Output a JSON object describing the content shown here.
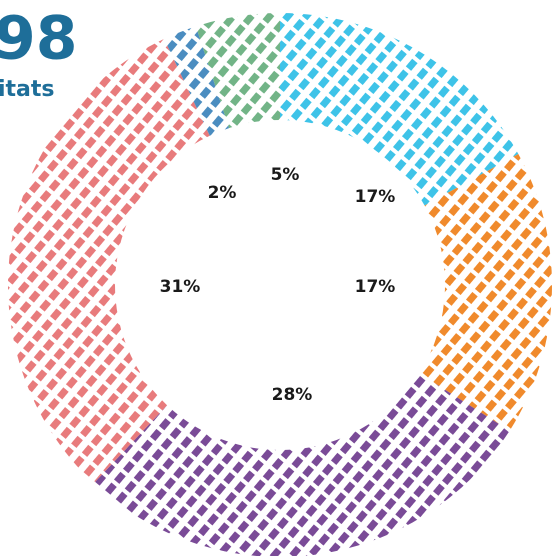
{
  "chart_data": {
    "type": "donut",
    "title": "98",
    "subtitle": "itats",
    "categories": [
      null,
      null,
      null,
      null,
      null,
      null
    ],
    "values": [
      17,
      17,
      28,
      31,
      2,
      5
    ],
    "value_labels": [
      "17%",
      "17%",
      "28%",
      "31%",
      "2%",
      "5%"
    ],
    "colors": [
      "#3ec3e8",
      "#f08a2c",
      "#7a4b97",
      "#e87b7c",
      "#4b8dc0",
      "#72b487"
    ]
  }
}
